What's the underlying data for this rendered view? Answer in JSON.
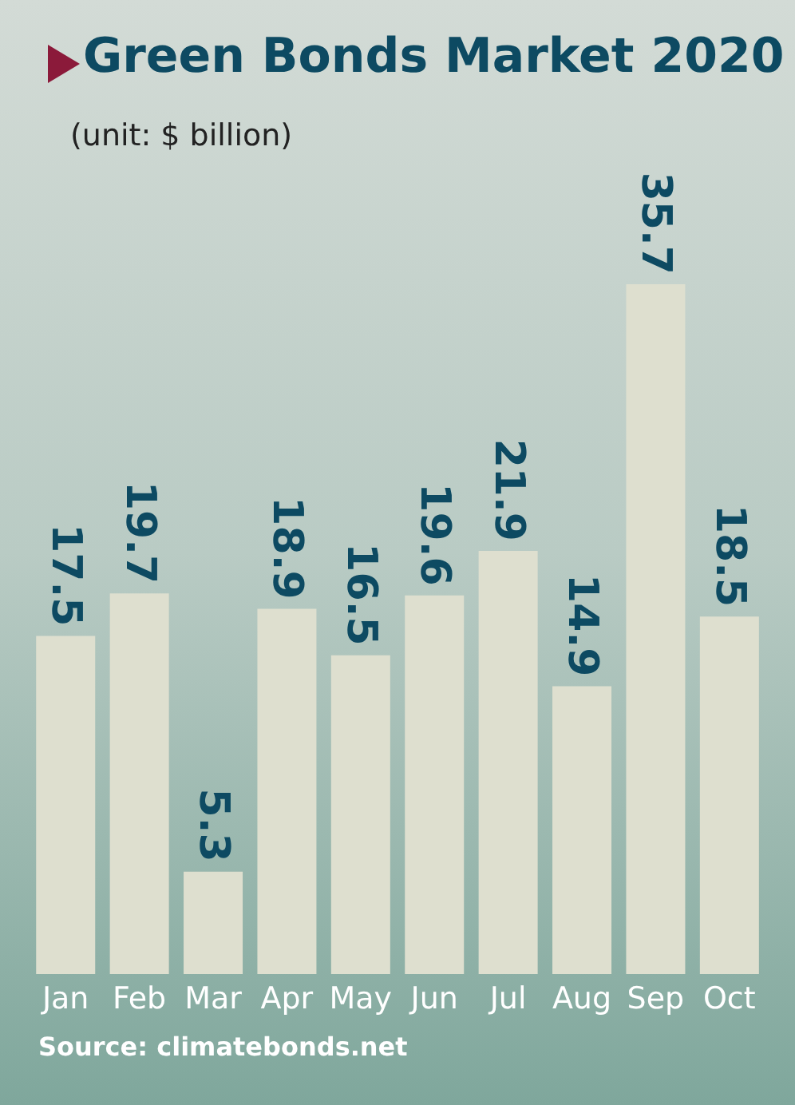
{
  "chart_data": {
    "type": "bar",
    "title": "Green Bonds Market 2020",
    "subtitle": "(unit: $ billion)",
    "categories": [
      "Jan",
      "Feb",
      "Mar",
      "Apr",
      "May",
      "Jun",
      "Jul",
      "Aug",
      "Sep",
      "Oct"
    ],
    "values": [
      17.5,
      19.7,
      5.3,
      18.9,
      16.5,
      19.6,
      21.9,
      14.9,
      35.7,
      18.5
    ],
    "color": "#dedfcf",
    "data_labels": true,
    "annotations": [
      "Source: climatebonds.net"
    ]
  }
}
